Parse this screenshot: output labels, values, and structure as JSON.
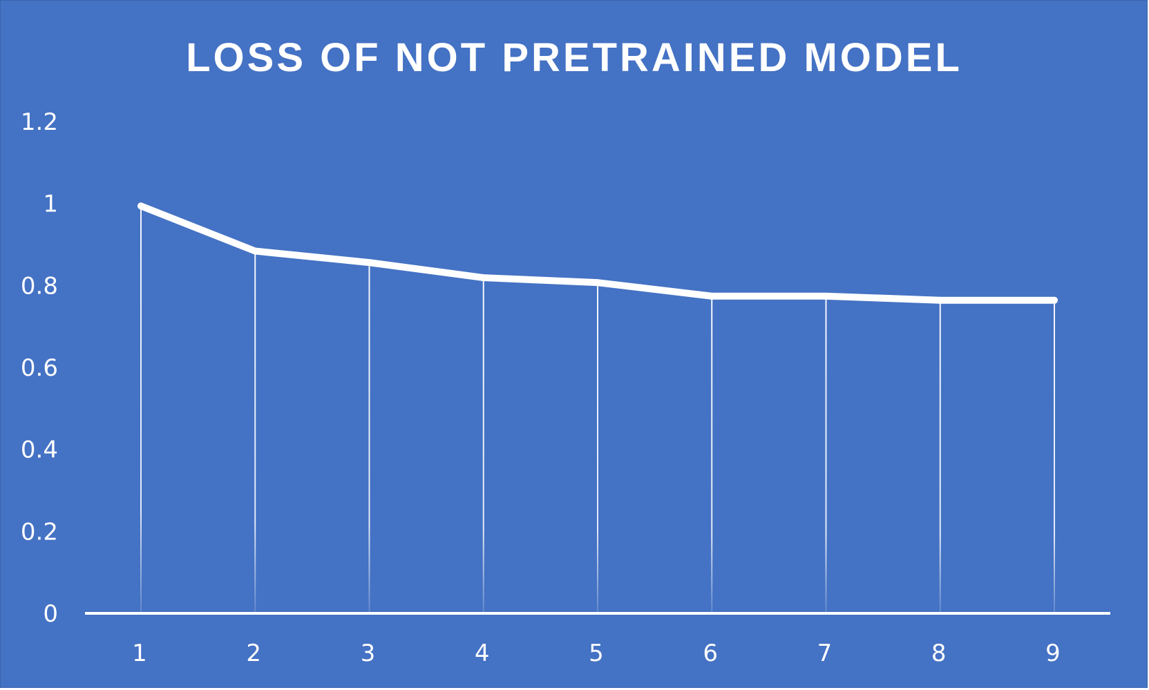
{
  "chart_data": {
    "type": "line",
    "title": "LOSS OF NOT PRETRAINED MODEL",
    "xlabel": "",
    "ylabel": "",
    "categories": [
      "1",
      "2",
      "3",
      "4",
      "5",
      "6",
      "7",
      "8",
      "9"
    ],
    "series": [
      {
        "values": [
          0.994,
          0.884,
          0.856,
          0.819,
          0.807,
          0.774,
          0.774,
          0.764,
          0.764
        ]
      }
    ],
    "ylim": [
      0,
      1.2
    ],
    "yticks": [
      "0",
      "0.2",
      "0.4",
      "0.6",
      "0.8",
      "1",
      "1.2"
    ],
    "drop_lines": true,
    "grid": false,
    "legend": "none",
    "colors": {
      "background": "#4472c4",
      "line": "#ffffff",
      "text": "#ffffff"
    }
  }
}
